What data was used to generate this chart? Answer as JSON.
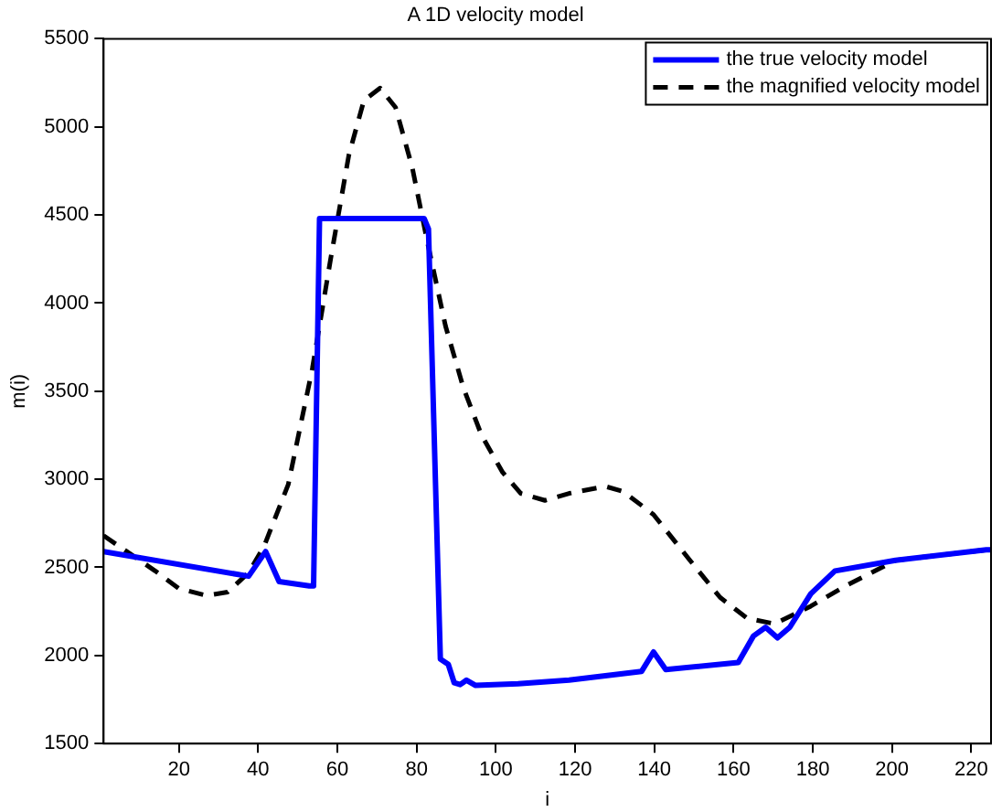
{
  "chart_data": {
    "type": "line",
    "title": "A 1D velocity model",
    "xlabel": "i",
    "ylabel": "m(i)",
    "xlim": [
      1,
      225
    ],
    "xticks": [
      20,
      40,
      60,
      80,
      100,
      120,
      140,
      160,
      180,
      200,
      220
    ],
    "ylim": [
      1500,
      5500
    ],
    "yticks": [
      1500,
      2000,
      2500,
      3000,
      3500,
      4000,
      4500,
      5000,
      5500
    ],
    "grid": false,
    "legend": "top right",
    "marker": "none",
    "series": [
      {
        "name": "the true velocity model",
        "color": "#0000ff",
        "line_style": "solid",
        "x": [
          1,
          37.6,
          41.9,
          45.3,
          52.9,
          54,
          55.5,
          81.9,
          83,
          86,
          88,
          89.5,
          91,
          92.6,
          94.9,
          105.6,
          118.5,
          136.8,
          139.8,
          142.9,
          161.2,
          165,
          168.1,
          171.1,
          174.2,
          179.5,
          185.6,
          200.9,
          223.8,
          225
        ],
        "values": [
          2590,
          2450,
          2590,
          2420,
          2395,
          2395,
          4480,
          4480,
          4420,
          1980,
          1950,
          1845,
          1835,
          1860,
          1830,
          1840,
          1860,
          1910,
          2020,
          1920,
          1960,
          2110,
          2160,
          2100,
          2160,
          2350,
          2480,
          2540,
          2600,
          2600
        ]
      },
      {
        "name": "the magnified velocity model",
        "color": "#000000",
        "line_style": "dashed",
        "x": [
          1,
          14,
          20,
          27,
          32.3,
          37.6,
          41.5,
          47.6,
          53.7,
          58.3,
          62.9,
          66.7,
          70.8,
          74.7,
          78.9,
          82.7,
          87.3,
          91.8,
          96.4,
          101.7,
          106.3,
          109.3,
          112.4,
          118.5,
          127.6,
          132.2,
          139.8,
          149,
          156.6,
          163.5,
          170.4,
          179.5,
          188.7,
          200.9,
          223.8,
          225
        ],
        "values": [
          2680,
          2480,
          2380,
          2340,
          2360,
          2470,
          2620,
          2970,
          3630,
          4250,
          4840,
          5150,
          5220,
          5110,
          4770,
          4350,
          3870,
          3520,
          3250,
          3040,
          2920,
          2900,
          2880,
          2920,
          2960,
          2930,
          2800,
          2540,
          2330,
          2210,
          2180,
          2280,
          2400,
          2540,
          2600,
          2600
        ]
      }
    ]
  }
}
